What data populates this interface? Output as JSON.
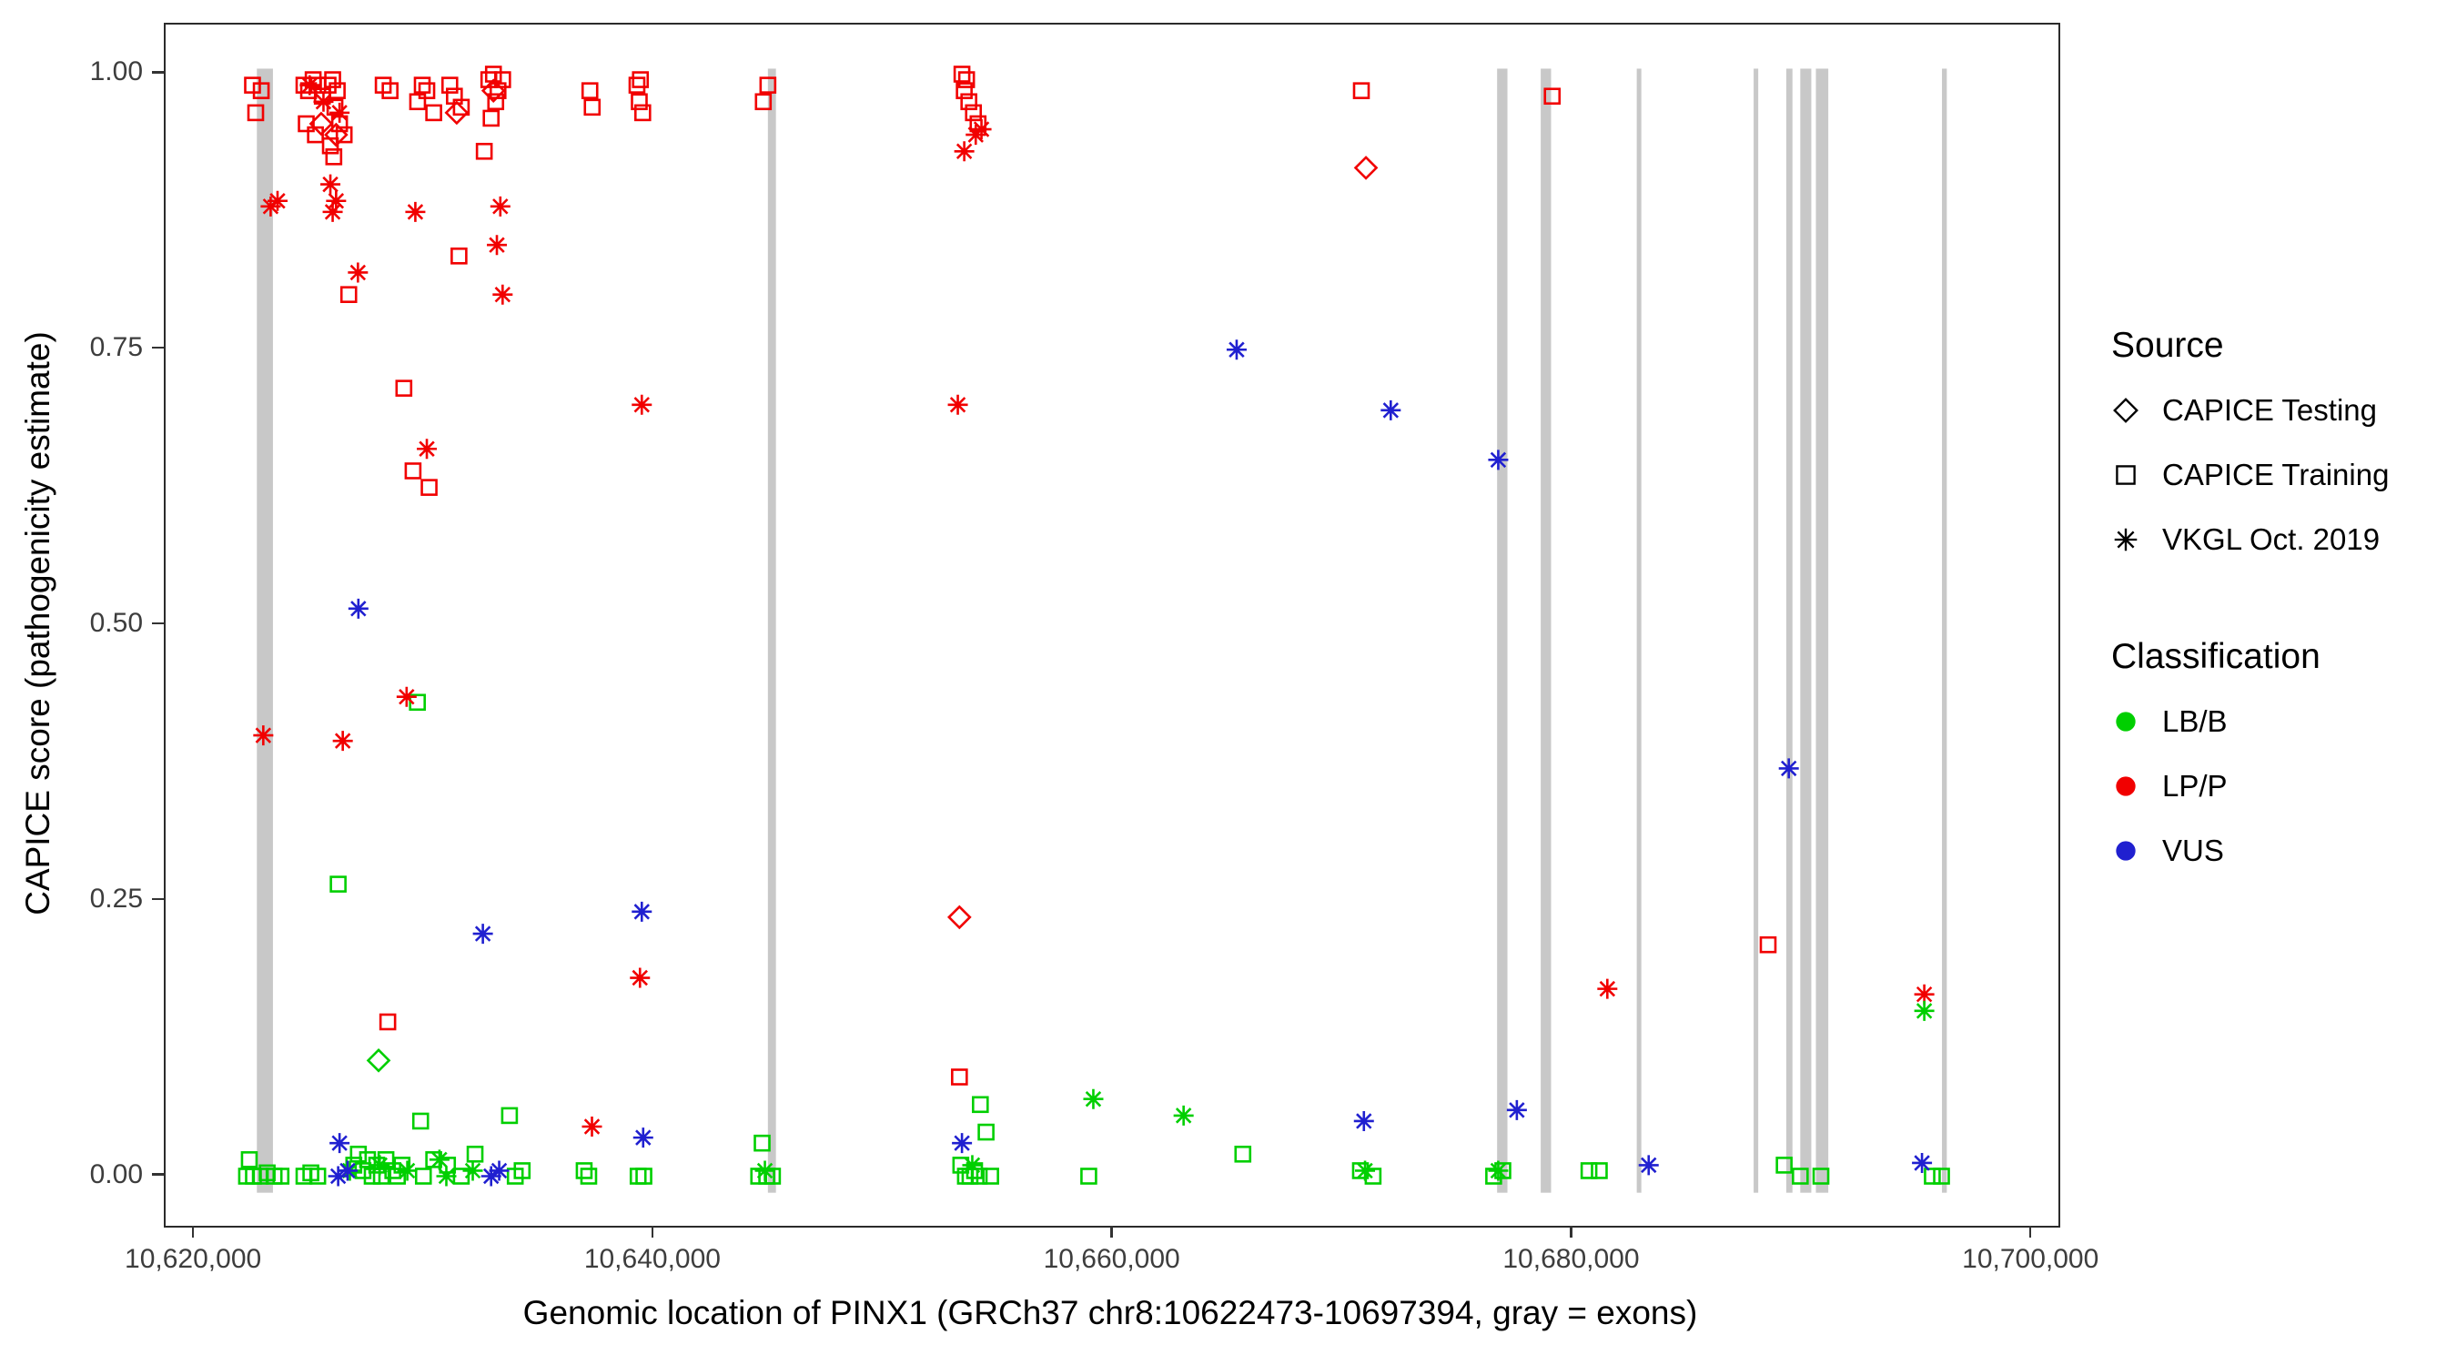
{
  "chart_data": {
    "type": "scatter",
    "title": "",
    "xlabel": "Genomic location of PINX1 (GRCh37 chr8:10622473-10697394, gray = exons)",
    "ylabel": "CAPICE score (pathogenicity estimate)",
    "xlim": [
      10618727,
      10701140
    ],
    "ylim": [
      -0.045,
      1.045
    ],
    "grid": false,
    "x_ticks": [
      {
        "value": 10620000,
        "label": "10,620,000"
      },
      {
        "value": 10640000,
        "label": "10,640,000"
      },
      {
        "value": 10660000,
        "label": "10,660,000"
      },
      {
        "value": 10680000,
        "label": "10,680,000"
      },
      {
        "value": 10700000,
        "label": "10,700,000"
      }
    ],
    "y_ticks": [
      {
        "value": 0.0,
        "label": "0.00"
      },
      {
        "value": 0.25,
        "label": "0.25"
      },
      {
        "value": 0.5,
        "label": "0.50"
      },
      {
        "value": 0.75,
        "label": "0.75"
      },
      {
        "value": 1.0,
        "label": "1.00"
      }
    ],
    "exon_color": "#c8c8c8",
    "exons": [
      [
        10622700,
        10623400
      ],
      [
        10644950,
        10645300
      ],
      [
        10676700,
        10677150
      ],
      [
        10678600,
        10679050
      ],
      [
        10682780,
        10682980
      ],
      [
        10687870,
        10688070
      ],
      [
        10689290,
        10689560
      ],
      [
        10689900,
        10690380
      ],
      [
        10690580,
        10691120
      ],
      [
        10696070,
        10696280
      ]
    ],
    "classification_colors": {
      "LB/B": "#00cf00",
      "LP/P": "#f10000",
      "VUS": "#2020d0"
    },
    "legend": {
      "position": "right",
      "source": {
        "title": "Source",
        "items": [
          {
            "label": "CAPICE Testing",
            "marker": "diamond"
          },
          {
            "label": "CAPICE Training",
            "marker": "square"
          },
          {
            "label": "VKGL Oct. 2019",
            "marker": "asterisk"
          }
        ]
      },
      "classification": {
        "title": "Classification",
        "items": [
          {
            "label": "LB/B",
            "color": "#00cf00"
          },
          {
            "label": "LP/P",
            "color": "#f10000"
          },
          {
            "label": "VUS",
            "color": "#2020d0"
          }
        ]
      }
    },
    "series": [
      {
        "name": "CAPICE Testing / LP/P",
        "marker": "diamond",
        "classification": "LP/P",
        "points": [
          [
            10625500,
            0.955
          ],
          [
            10626150,
            0.945
          ],
          [
            10631400,
            0.965
          ],
          [
            10633000,
            0.985
          ],
          [
            10653290,
            0.235
          ],
          [
            10670990,
            0.915
          ]
        ]
      },
      {
        "name": "CAPICE Testing / LB/B",
        "marker": "diamond",
        "classification": "LB/B",
        "points": [
          [
            10628000,
            0.105
          ]
        ]
      },
      {
        "name": "CAPICE Training / LP/P",
        "marker": "square",
        "classification": "LP/P",
        "points": [
          [
            10622510,
            0.99
          ],
          [
            10622890,
            0.985
          ],
          [
            10622650,
            0.965
          ],
          [
            10624750,
            0.99
          ],
          [
            10624950,
            0.985
          ],
          [
            10625150,
            0.995
          ],
          [
            10625350,
            0.99
          ],
          [
            10624850,
            0.955
          ],
          [
            10625250,
            0.945
          ],
          [
            10625550,
            0.98
          ],
          [
            10625800,
            0.99
          ],
          [
            10626000,
            0.995
          ],
          [
            10626200,
            0.985
          ],
          [
            10626100,
            0.97
          ],
          [
            10626300,
            0.955
          ],
          [
            10625900,
            0.935
          ],
          [
            10626050,
            0.925
          ],
          [
            10626500,
            0.945
          ],
          [
            10626700,
            0.8
          ],
          [
            10628200,
            0.99
          ],
          [
            10628500,
            0.985
          ],
          [
            10629100,
            0.715
          ],
          [
            10629500,
            0.64
          ],
          [
            10630200,
            0.625
          ],
          [
            10628400,
            0.14
          ],
          [
            10629700,
            0.975
          ],
          [
            10629900,
            0.99
          ],
          [
            10630100,
            0.985
          ],
          [
            10630400,
            0.965
          ],
          [
            10631100,
            0.99
          ],
          [
            10631300,
            0.98
          ],
          [
            10631600,
            0.97
          ],
          [
            10631500,
            0.835
          ],
          [
            10632600,
            0.93
          ],
          [
            10632800,
            0.995
          ],
          [
            10633000,
            1.0
          ],
          [
            10633200,
            0.985
          ],
          [
            10633400,
            0.995
          ],
          [
            10633100,
            0.975
          ],
          [
            10632900,
            0.96
          ],
          [
            10637200,
            0.985
          ],
          [
            10637300,
            0.97
          ],
          [
            10639250,
            0.99
          ],
          [
            10639400,
            0.995
          ],
          [
            10639350,
            0.975
          ],
          [
            10639500,
            0.965
          ],
          [
            10644750,
            0.975
          ],
          [
            10644950,
            0.99
          ],
          [
            10653400,
            1.0
          ],
          [
            10653600,
            0.995
          ],
          [
            10653500,
            0.985
          ],
          [
            10653700,
            0.975
          ],
          [
            10653900,
            0.965
          ],
          [
            10654100,
            0.955
          ],
          [
            10653290,
            0.09
          ],
          [
            10670790,
            0.985
          ],
          [
            10679100,
            0.98
          ],
          [
            10688500,
            0.21
          ]
        ]
      },
      {
        "name": "CAPICE Training / LB/B",
        "marker": "square",
        "classification": "LB/B",
        "points": [
          [
            10622370,
            0.015
          ],
          [
            10622250,
            0.0
          ],
          [
            10622550,
            0.0
          ],
          [
            10622850,
            0.0
          ],
          [
            10623150,
            0.003
          ],
          [
            10623450,
            0.0
          ],
          [
            10623750,
            0.0
          ],
          [
            10624750,
            0.0
          ],
          [
            10625050,
            0.003
          ],
          [
            10625350,
            0.0
          ],
          [
            10626240,
            0.265
          ],
          [
            10626920,
            0.01
          ],
          [
            10627120,
            0.02
          ],
          [
            10627320,
            0.005
          ],
          [
            10627520,
            0.015
          ],
          [
            10627720,
            0.0
          ],
          [
            10627920,
            0.01
          ],
          [
            10628120,
            0.0
          ],
          [
            10628320,
            0.015
          ],
          [
            10628620,
            0.005
          ],
          [
            10628820,
            0.0
          ],
          [
            10629020,
            0.01
          ],
          [
            10629690,
            0.43
          ],
          [
            10629830,
            0.05
          ],
          [
            10629950,
            0.0
          ],
          [
            10630400,
            0.015
          ],
          [
            10631000,
            0.01
          ],
          [
            10631600,
            0.0
          ],
          [
            10632200,
            0.02
          ],
          [
            10633700,
            0.055
          ],
          [
            10633950,
            0.0
          ],
          [
            10634250,
            0.005
          ],
          [
            10636950,
            0.005
          ],
          [
            10637150,
            0.0
          ],
          [
            10639300,
            0.0
          ],
          [
            10639550,
            0.0
          ],
          [
            10644700,
            0.03
          ],
          [
            10644550,
            0.0
          ],
          [
            10644900,
            0.0
          ],
          [
            10645150,
            0.0
          ],
          [
            10653350,
            0.01
          ],
          [
            10653550,
            0.0
          ],
          [
            10653750,
            0.0
          ],
          [
            10653950,
            0.005
          ],
          [
            10654150,
            0.0
          ],
          [
            10654200,
            0.065
          ],
          [
            10654450,
            0.04
          ],
          [
            10654650,
            0.0
          ],
          [
            10658920,
            0.0
          ],
          [
            10665630,
            0.02
          ],
          [
            10670750,
            0.005
          ],
          [
            10671300,
            0.0
          ],
          [
            10676550,
            0.0
          ],
          [
            10676950,
            0.005
          ],
          [
            10680700,
            0.005
          ],
          [
            10681150,
            0.005
          ],
          [
            10689200,
            0.01
          ],
          [
            10689900,
            0.0
          ],
          [
            10690800,
            0.0
          ],
          [
            10695650,
            0.0
          ],
          [
            10696050,
            0.0
          ]
        ]
      },
      {
        "name": "VKGL Oct. 2019 / LP/P",
        "marker": "asterisk",
        "classification": "LP/P",
        "points": [
          [
            10622980,
            0.4
          ],
          [
            10623300,
            0.88
          ],
          [
            10623600,
            0.885
          ],
          [
            10625000,
            0.99
          ],
          [
            10625600,
            0.975
          ],
          [
            10626300,
            0.965
          ],
          [
            10625900,
            0.9
          ],
          [
            10626150,
            0.885
          ],
          [
            10626000,
            0.875
          ],
          [
            10626440,
            0.395
          ],
          [
            10627100,
            0.82
          ],
          [
            10629600,
            0.875
          ],
          [
            10630100,
            0.66
          ],
          [
            10629220,
            0.435
          ],
          [
            10633300,
            0.88
          ],
          [
            10633150,
            0.845
          ],
          [
            10633400,
            0.8
          ],
          [
            10637290,
            0.045
          ],
          [
            10639460,
            0.7
          ],
          [
            10639380,
            0.18
          ],
          [
            10653220,
            0.7
          ],
          [
            10653500,
            0.93
          ],
          [
            10654000,
            0.945
          ],
          [
            10654250,
            0.95
          ],
          [
            10681500,
            0.17
          ],
          [
            10695300,
            0.165
          ]
        ]
      },
      {
        "name": "VKGL Oct. 2019 / LB/B",
        "marker": "asterisk",
        "classification": "LB/B",
        "points": [
          [
            10626750,
            0.005
          ],
          [
            10628050,
            0.01
          ],
          [
            10629250,
            0.005
          ],
          [
            10630650,
            0.015
          ],
          [
            10630950,
            0.0
          ],
          [
            10632100,
            0.005
          ],
          [
            10644820,
            0.005
          ],
          [
            10653850,
            0.01
          ],
          [
            10659120,
            0.07
          ],
          [
            10663050,
            0.055
          ],
          [
            10670950,
            0.005
          ],
          [
            10676750,
            0.005
          ],
          [
            10695300,
            0.15
          ]
        ]
      },
      {
        "name": "VKGL Oct. 2019 / VUS",
        "marker": "asterisk",
        "classification": "VUS",
        "points": [
          [
            10626300,
            0.03
          ],
          [
            10626240,
            0.0
          ],
          [
            10626650,
            0.005
          ],
          [
            10627120,
            0.515
          ],
          [
            10632540,
            0.22
          ],
          [
            10632900,
            0.0
          ],
          [
            10633250,
            0.005
          ],
          [
            10639460,
            0.24
          ],
          [
            10639520,
            0.035
          ],
          [
            10653400,
            0.03
          ],
          [
            10665360,
            0.75
          ],
          [
            10670900,
            0.05
          ],
          [
            10672070,
            0.695
          ],
          [
            10676750,
            0.65
          ],
          [
            10677560,
            0.06
          ],
          [
            10683300,
            0.01
          ],
          [
            10689400,
            0.37
          ],
          [
            10695200,
            0.012
          ]
        ]
      }
    ]
  }
}
